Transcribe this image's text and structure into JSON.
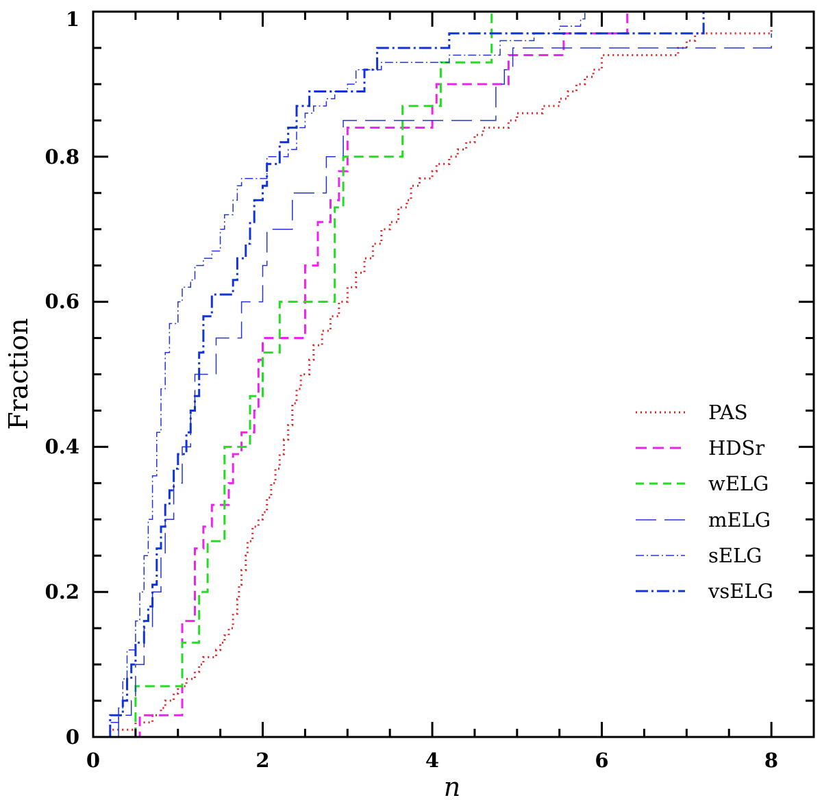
{
  "chart_data": {
    "type": "line",
    "title": "",
    "xlabel": "n",
    "ylabel": "Fraction",
    "xlim": [
      0,
      8.5
    ],
    "ylim": [
      0,
      1
    ],
    "x_ticks": [
      "0",
      "2",
      "4",
      "6",
      "8"
    ],
    "y_ticks": [
      "0",
      "0.2",
      "0.4",
      "0.6",
      "0.8",
      "1"
    ],
    "grid": false,
    "legend_position": "lower-right",
    "series": [
      {
        "name": "PAS",
        "color": "#dd2222",
        "style": "dotted",
        "points": [
          [
            0.2,
            0
          ],
          [
            0.2,
            0.01
          ],
          [
            0.5,
            0.02
          ],
          [
            0.7,
            0.03
          ],
          [
            0.8,
            0.04
          ],
          [
            0.85,
            0.05
          ],
          [
            0.95,
            0.06
          ],
          [
            1.0,
            0.07
          ],
          [
            1.1,
            0.08
          ],
          [
            1.2,
            0.09
          ],
          [
            1.25,
            0.1
          ],
          [
            1.3,
            0.11
          ],
          [
            1.45,
            0.12
          ],
          [
            1.5,
            0.13
          ],
          [
            1.55,
            0.14
          ],
          [
            1.6,
            0.15
          ],
          [
            1.65,
            0.17
          ],
          [
            1.7,
            0.19
          ],
          [
            1.72,
            0.21
          ],
          [
            1.75,
            0.23
          ],
          [
            1.8,
            0.25
          ],
          [
            1.82,
            0.27
          ],
          [
            1.88,
            0.29
          ],
          [
            1.95,
            0.3
          ],
          [
            2.0,
            0.31
          ],
          [
            2.05,
            0.33
          ],
          [
            2.1,
            0.35
          ],
          [
            2.15,
            0.37
          ],
          [
            2.2,
            0.39
          ],
          [
            2.25,
            0.41
          ],
          [
            2.3,
            0.43
          ],
          [
            2.35,
            0.46
          ],
          [
            2.4,
            0.48
          ],
          [
            2.45,
            0.5
          ],
          [
            2.55,
            0.52
          ],
          [
            2.6,
            0.54
          ],
          [
            2.7,
            0.56
          ],
          [
            2.8,
            0.58
          ],
          [
            2.9,
            0.6
          ],
          [
            3.0,
            0.62
          ],
          [
            3.1,
            0.64
          ],
          [
            3.2,
            0.66
          ],
          [
            3.3,
            0.68
          ],
          [
            3.4,
            0.7
          ],
          [
            3.5,
            0.71
          ],
          [
            3.6,
            0.73
          ],
          [
            3.7,
            0.74
          ],
          [
            3.75,
            0.76
          ],
          [
            3.85,
            0.77
          ],
          [
            4.0,
            0.78
          ],
          [
            4.05,
            0.79
          ],
          [
            4.2,
            0.8
          ],
          [
            4.3,
            0.81
          ],
          [
            4.4,
            0.82
          ],
          [
            4.5,
            0.83
          ],
          [
            4.6,
            0.84
          ],
          [
            4.9,
            0.85
          ],
          [
            5.0,
            0.86
          ],
          [
            5.3,
            0.87
          ],
          [
            5.5,
            0.88
          ],
          [
            5.6,
            0.89
          ],
          [
            5.7,
            0.9
          ],
          [
            5.8,
            0.91
          ],
          [
            5.9,
            0.92
          ],
          [
            6.0,
            0.94
          ],
          [
            6.9,
            0.95
          ],
          [
            7.0,
            0.96
          ],
          [
            7.1,
            0.97
          ],
          [
            7.95,
            0.97
          ],
          [
            8.0,
            0.98
          ]
        ]
      },
      {
        "name": "HDSr",
        "color": "#ee22ee",
        "style": "dashed",
        "points": [
          [
            0.5,
            0
          ],
          [
            0.55,
            0.03
          ],
          [
            1.05,
            0.03
          ],
          [
            1.05,
            0.16
          ],
          [
            1.2,
            0.26
          ],
          [
            1.3,
            0.29
          ],
          [
            1.4,
            0.32
          ],
          [
            1.6,
            0.35
          ],
          [
            1.65,
            0.39
          ],
          [
            1.75,
            0.42
          ],
          [
            1.9,
            0.45
          ],
          [
            1.95,
            0.52
          ],
          [
            2.0,
            0.55
          ],
          [
            2.45,
            0.55
          ],
          [
            2.5,
            0.65
          ],
          [
            2.65,
            0.71
          ],
          [
            2.8,
            0.74
          ],
          [
            2.9,
            0.78
          ],
          [
            3.0,
            0.84
          ],
          [
            3.85,
            0.84
          ],
          [
            4.0,
            0.87
          ],
          [
            4.05,
            0.9
          ],
          [
            4.8,
            0.9
          ],
          [
            4.9,
            0.94
          ],
          [
            5.55,
            0.94
          ],
          [
            5.55,
            0.97
          ],
          [
            6.3,
            0.97
          ],
          [
            6.3,
            1.0
          ]
        ]
      },
      {
        "name": "wELG",
        "color": "#22dd22",
        "style": "dashed",
        "points": [
          [
            0.5,
            0
          ],
          [
            0.5,
            0.07
          ],
          [
            1.05,
            0.07
          ],
          [
            1.05,
            0.13
          ],
          [
            1.25,
            0.13
          ],
          [
            1.25,
            0.2
          ],
          [
            1.35,
            0.27
          ],
          [
            1.55,
            0.27
          ],
          [
            1.55,
            0.4
          ],
          [
            1.85,
            0.4
          ],
          [
            1.85,
            0.47
          ],
          [
            2.0,
            0.47
          ],
          [
            2.0,
            0.53
          ],
          [
            2.2,
            0.53
          ],
          [
            2.2,
            0.6
          ],
          [
            2.85,
            0.6
          ],
          [
            2.85,
            0.73
          ],
          [
            2.95,
            0.73
          ],
          [
            2.95,
            0.8
          ],
          [
            3.65,
            0.8
          ],
          [
            3.65,
            0.87
          ],
          [
            4.1,
            0.87
          ],
          [
            4.1,
            0.93
          ],
          [
            4.7,
            0.93
          ],
          [
            4.7,
            1.0
          ]
        ]
      },
      {
        "name": "mELG",
        "color": "#2233dd",
        "style": "longdash",
        "points": [
          [
            0.3,
            0
          ],
          [
            0.3,
            0.03
          ],
          [
            0.45,
            0.05
          ],
          [
            0.5,
            0.1
          ],
          [
            0.6,
            0.15
          ],
          [
            0.7,
            0.2
          ],
          [
            0.8,
            0.25
          ],
          [
            0.85,
            0.3
          ],
          [
            0.95,
            0.35
          ],
          [
            1.05,
            0.4
          ],
          [
            1.15,
            0.45
          ],
          [
            1.2,
            0.5
          ],
          [
            1.35,
            0.5
          ],
          [
            1.45,
            0.55
          ],
          [
            1.7,
            0.55
          ],
          [
            1.75,
            0.6
          ],
          [
            2.0,
            0.65
          ],
          [
            2.05,
            0.7
          ],
          [
            2.3,
            0.7
          ],
          [
            2.35,
            0.75
          ],
          [
            2.7,
            0.75
          ],
          [
            2.75,
            0.8
          ],
          [
            2.95,
            0.8
          ],
          [
            2.95,
            0.85
          ],
          [
            4.6,
            0.85
          ],
          [
            4.75,
            0.9
          ],
          [
            4.85,
            0.92
          ],
          [
            4.95,
            0.95
          ],
          [
            8.0,
            0.95
          ],
          [
            8.0,
            0.97
          ]
        ]
      },
      {
        "name": "sELG",
        "color": "#2233dd",
        "style": "dashdot",
        "points": [
          [
            0.2,
            0
          ],
          [
            0.2,
            0.02
          ],
          [
            0.3,
            0.04
          ],
          [
            0.35,
            0.08
          ],
          [
            0.4,
            0.12
          ],
          [
            0.5,
            0.16
          ],
          [
            0.55,
            0.2
          ],
          [
            0.6,
            0.25
          ],
          [
            0.65,
            0.3
          ],
          [
            0.7,
            0.36
          ],
          [
            0.75,
            0.42
          ],
          [
            0.8,
            0.48
          ],
          [
            0.85,
            0.53
          ],
          [
            0.9,
            0.57
          ],
          [
            1.0,
            0.6
          ],
          [
            1.05,
            0.62
          ],
          [
            1.15,
            0.63
          ],
          [
            1.2,
            0.65
          ],
          [
            1.3,
            0.66
          ],
          [
            1.4,
            0.67
          ],
          [
            1.5,
            0.7
          ],
          [
            1.55,
            0.72
          ],
          [
            1.65,
            0.74
          ],
          [
            1.7,
            0.76
          ],
          [
            1.75,
            0.77
          ],
          [
            2.0,
            0.77
          ],
          [
            2.05,
            0.8
          ],
          [
            2.3,
            0.81
          ],
          [
            2.4,
            0.84
          ],
          [
            2.5,
            0.86
          ],
          [
            2.6,
            0.87
          ],
          [
            2.75,
            0.88
          ],
          [
            2.85,
            0.89
          ],
          [
            3.0,
            0.9
          ],
          [
            3.1,
            0.92
          ],
          [
            3.4,
            0.93
          ],
          [
            3.9,
            0.93
          ],
          [
            4.2,
            0.94
          ],
          [
            4.8,
            0.96
          ],
          [
            5.2,
            0.97
          ],
          [
            5.5,
            0.98
          ],
          [
            5.75,
            0.99
          ],
          [
            5.8,
            1.0
          ]
        ]
      },
      {
        "name": "vsELG",
        "color": "#1133dd",
        "style": "dashdot-thick",
        "points": [
          [
            0.2,
            0
          ],
          [
            0.2,
            0.03
          ],
          [
            0.35,
            0.05
          ],
          [
            0.4,
            0.08
          ],
          [
            0.45,
            0.1
          ],
          [
            0.5,
            0.13
          ],
          [
            0.6,
            0.16
          ],
          [
            0.65,
            0.18
          ],
          [
            0.7,
            0.21
          ],
          [
            0.75,
            0.26
          ],
          [
            0.8,
            0.29
          ],
          [
            0.85,
            0.32
          ],
          [
            0.9,
            0.34
          ],
          [
            0.95,
            0.37
          ],
          [
            1.0,
            0.39
          ],
          [
            1.1,
            0.42
          ],
          [
            1.15,
            0.45
          ],
          [
            1.2,
            0.47
          ],
          [
            1.25,
            0.53
          ],
          [
            1.3,
            0.58
          ],
          [
            1.4,
            0.61
          ],
          [
            1.6,
            0.61
          ],
          [
            1.65,
            0.63
          ],
          [
            1.7,
            0.66
          ],
          [
            1.8,
            0.68
          ],
          [
            1.85,
            0.71
          ],
          [
            1.9,
            0.74
          ],
          [
            2.0,
            0.76
          ],
          [
            2.05,
            0.79
          ],
          [
            2.2,
            0.82
          ],
          [
            2.3,
            0.84
          ],
          [
            2.4,
            0.87
          ],
          [
            2.55,
            0.89
          ],
          [
            3.05,
            0.89
          ],
          [
            3.2,
            0.92
          ],
          [
            3.35,
            0.95
          ],
          [
            4.2,
            0.95
          ],
          [
            4.2,
            0.97
          ],
          [
            7.2,
            0.97
          ],
          [
            7.2,
            1.0
          ]
        ]
      }
    ]
  }
}
